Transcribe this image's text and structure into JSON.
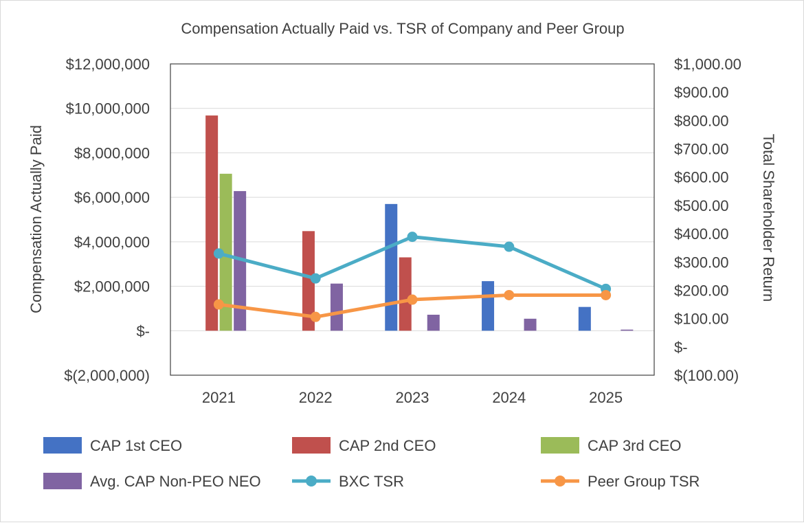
{
  "chart_data": {
    "type": "bar",
    "title": "Compensation Actually Paid vs. TSR of Company and Peer Group",
    "categories": [
      "2021",
      "2022",
      "2023",
      "2024",
      "2025"
    ],
    "ylabel": "Compensation Actually Paid",
    "y2label": "Total Shareholder Return",
    "ylim": [
      -2000000,
      12000000
    ],
    "y2lim": [
      -100,
      1000
    ],
    "y_ticks": [
      "$12,000,000",
      "$10,000,000",
      "$8,000,000",
      "$6,000,000",
      "$4,000,000",
      "$2,000,000",
      "$-",
      "$(2,000,000)"
    ],
    "y2_ticks": [
      "$1,000.00",
      "$900.00",
      "$800.00",
      "$700.00",
      "$600.00",
      "$500.00",
      "$400.00",
      "$300.00",
      "$200.00",
      "$100.00",
      "$-",
      "$(100.00)"
    ],
    "grid": true,
    "legend_position": "bottom",
    "bar_series": [
      {
        "name": "CAP 1st CEO",
        "color": "#4472c4",
        "values": [
          null,
          null,
          5700000,
          2230000,
          1070000
        ]
      },
      {
        "name": "CAP 2nd CEO",
        "color": "#c0504d",
        "values": [
          9680000,
          4480000,
          3300000,
          null,
          null
        ]
      },
      {
        "name": "CAP 3rd CEO",
        "color": "#9bbb59",
        "values": [
          7060000,
          null,
          null,
          null,
          null
        ]
      },
      {
        "name": "Avg. CAP Non-PEO NEO",
        "color": "#8064a2",
        "values": [
          6280000,
          2120000,
          720000,
          540000,
          50000
        ]
      }
    ],
    "line_series": [
      {
        "name": "BXC TSR",
        "color": "#4bacc6",
        "values": [
          330,
          242,
          389,
          354,
          205
        ]
      },
      {
        "name": "Peer Group TSR",
        "color": "#f79646",
        "values": [
          150,
          106,
          167,
          183,
          183
        ]
      }
    ]
  }
}
